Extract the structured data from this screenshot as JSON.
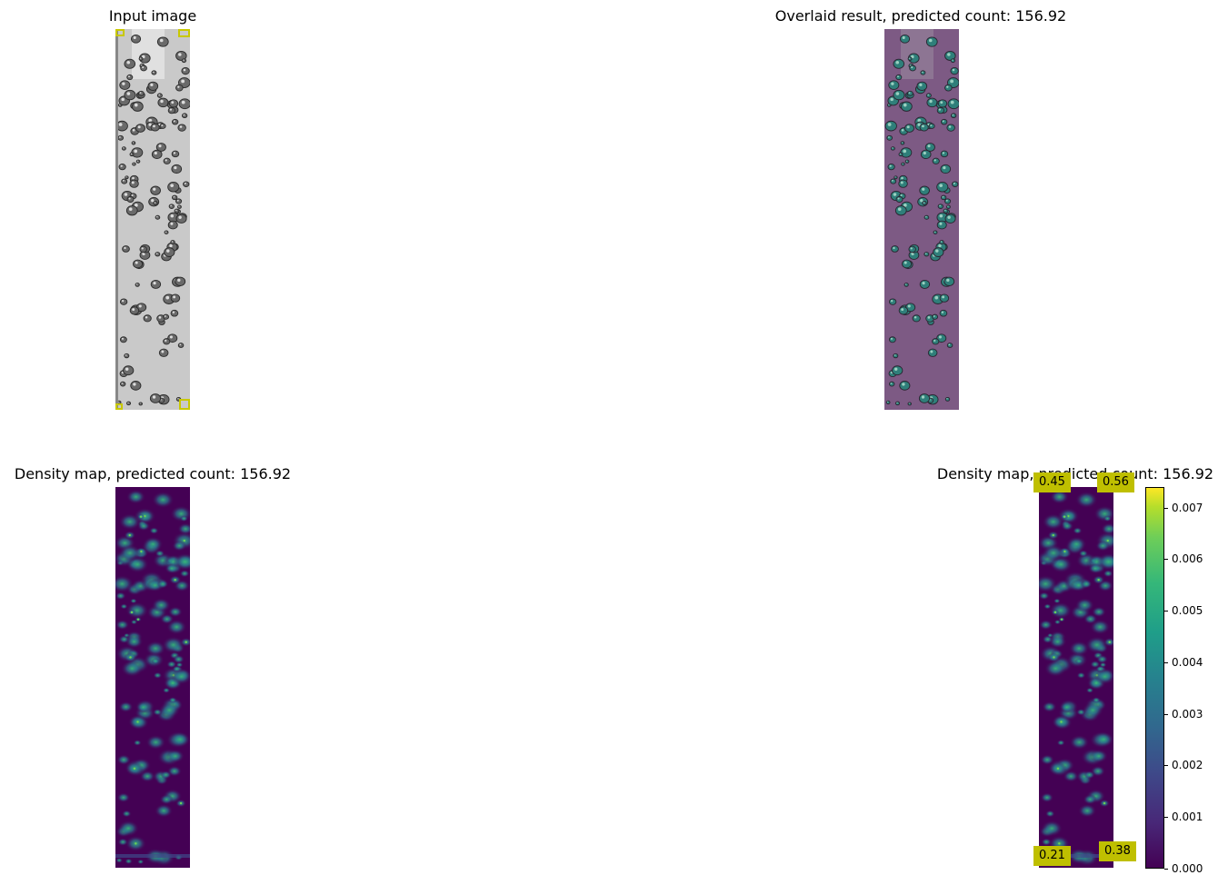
{
  "panels": {
    "input": {
      "title": "Input image"
    },
    "overlay": {
      "title": "Overlaid result, predicted count: 156.92"
    },
    "density": {
      "title": "Density map, predicted count: 156.92"
    },
    "density_boxes": {
      "title": "Density map, predicted count: 156.92"
    }
  },
  "box_labels": [
    "0.45",
    "0.56",
    "0.21",
    "0.38"
  ],
  "colorbar": {
    "ticks": [
      "0.007",
      "0.006",
      "0.005",
      "0.004",
      "0.003",
      "0.002",
      "0.001",
      "0.000"
    ],
    "min": 0.0,
    "max": 0.0074,
    "colormap": "viridis"
  },
  "colors": {
    "box_yellow": "#bfbf00",
    "viridis_low": "#440154",
    "viridis_mid": "#21918c",
    "viridis_high": "#fde725"
  }
}
